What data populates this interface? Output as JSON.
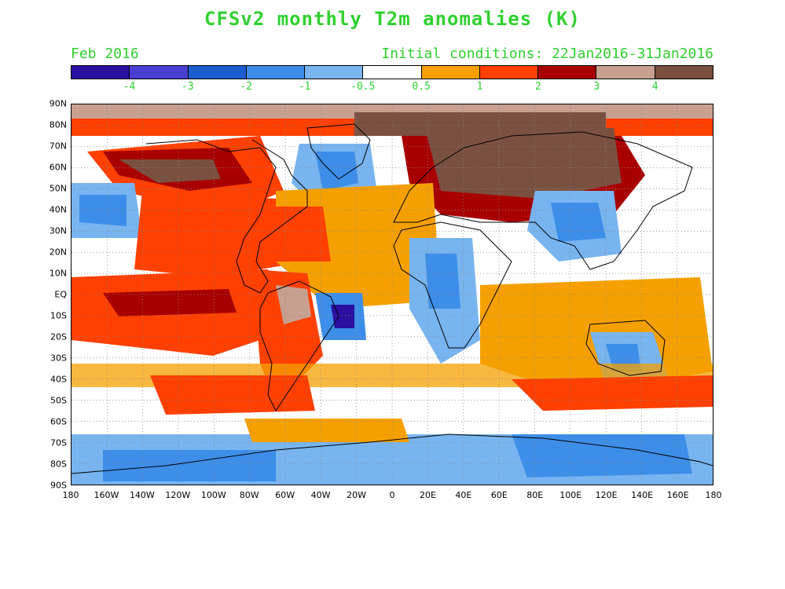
{
  "title": "CFSv2 monthly T2m anomalies (K)",
  "forecast_month": "Feb 2016",
  "initial_conditions": "Initial conditions: 22Jan2016-31Jan2016",
  "colorbar": {
    "colors": [
      "#2a0fa0",
      "#4a3fd0",
      "#1a5ed0",
      "#3c8ee8",
      "#78b4f0",
      "#ffffff",
      "#f5a000",
      "#ff4000",
      "#a80000",
      "#c8a090",
      "#7a5040"
    ],
    "labels": [
      "-4",
      "-3",
      "-2",
      "-1",
      "-0.5",
      "0.5",
      "1",
      "2",
      "3",
      "4"
    ]
  },
  "map": {
    "lat_labels": [
      "90N",
      "80N",
      "70N",
      "60N",
      "50N",
      "40N",
      "30N",
      "20N",
      "10N",
      "EQ",
      "10S",
      "20S",
      "30S",
      "40S",
      "50S",
      "60S",
      "70S",
      "80S",
      "90S"
    ],
    "lon_labels": [
      "180",
      "160W",
      "140W",
      "120W",
      "100W",
      "80W",
      "60W",
      "40W",
      "20W",
      "0",
      "20E",
      "40E",
      "60E",
      "80E",
      "100E",
      "120E",
      "140E",
      "160E",
      "180"
    ]
  }
}
